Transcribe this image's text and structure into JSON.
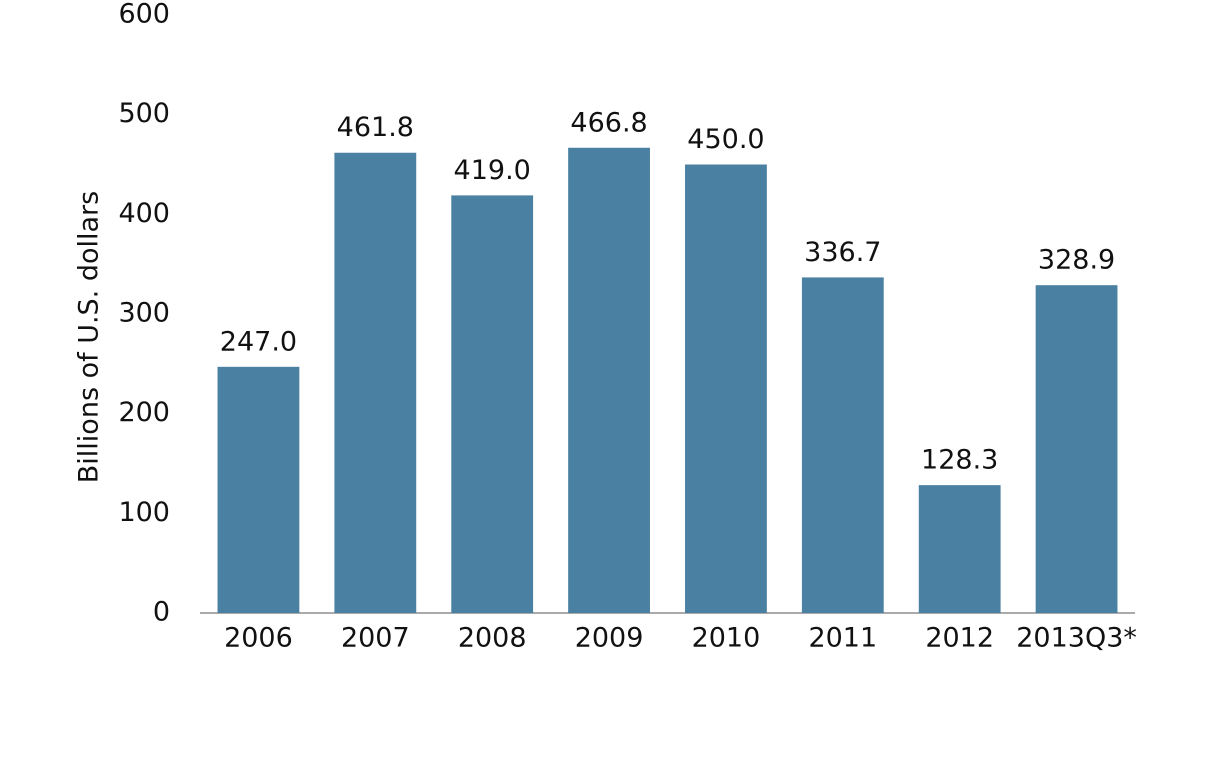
{
  "chart_data": {
    "type": "bar",
    "y_label": "Billions of U.S. dollars",
    "categories": [
      "2006",
      "2007",
      "2008",
      "2009",
      "2010",
      "2011",
      "2012",
      "2013Q3*"
    ],
    "values": [
      247.0,
      461.8,
      419.0,
      466.8,
      450.0,
      336.7,
      128.3,
      328.9
    ],
    "value_labels": [
      "247.0",
      "461.8",
      "419.0",
      "466.8",
      "450.0",
      "336.7",
      "128.3",
      "328.9"
    ],
    "color": "#4a80a1",
    "ylim": [
      0,
      600
    ],
    "yticks": [
      0,
      100,
      200,
      300,
      400,
      500,
      600
    ],
    "grid": false
  }
}
